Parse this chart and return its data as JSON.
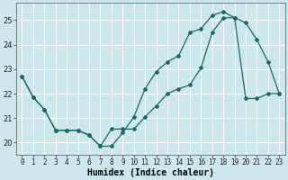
{
  "xlabel": "Humidex (Indice chaleur)",
  "bg_color": "#cce8ec",
  "grid_color": "#ffffff",
  "line_color": "#1a6b5e",
  "xlim": [
    -0.5,
    23.5
  ],
  "ylim": [
    19.5,
    25.7
  ],
  "yticks": [
    20,
    21,
    22,
    23,
    24,
    25
  ],
  "xticks": [
    0,
    1,
    2,
    3,
    4,
    5,
    6,
    7,
    8,
    9,
    10,
    11,
    12,
    13,
    14,
    15,
    16,
    17,
    18,
    19,
    20,
    21,
    22,
    23
  ],
  "line1_x": [
    0,
    1,
    2,
    3,
    4,
    5,
    6,
    7,
    8,
    9,
    10,
    11,
    12,
    13,
    14,
    15,
    16,
    17,
    18,
    19,
    20,
    21,
    22,
    23
  ],
  "line1_y": [
    22.7,
    21.85,
    21.35,
    20.5,
    20.5,
    20.5,
    20.3,
    19.85,
    19.85,
    20.4,
    21.05,
    22.2,
    22.9,
    23.3,
    23.55,
    24.5,
    24.65,
    25.2,
    25.35,
    25.1,
    24.9,
    24.2,
    23.3,
    22.0
  ],
  "line2_x": [
    0,
    1,
    2,
    3,
    4,
    5,
    6,
    7,
    8,
    9,
    10,
    11,
    12,
    13,
    14,
    15,
    16,
    17,
    18,
    19,
    20,
    21,
    22,
    23
  ],
  "line2_y": [
    22.7,
    21.85,
    21.35,
    20.5,
    20.5,
    20.5,
    20.3,
    19.85,
    20.55,
    20.55,
    20.55,
    21.05,
    21.5,
    22.0,
    22.2,
    22.35,
    23.05,
    24.5,
    25.1,
    25.1,
    21.8,
    21.8,
    22.0,
    22.0
  ],
  "tick_fontsize": 5.5,
  "xlabel_fontsize": 7
}
